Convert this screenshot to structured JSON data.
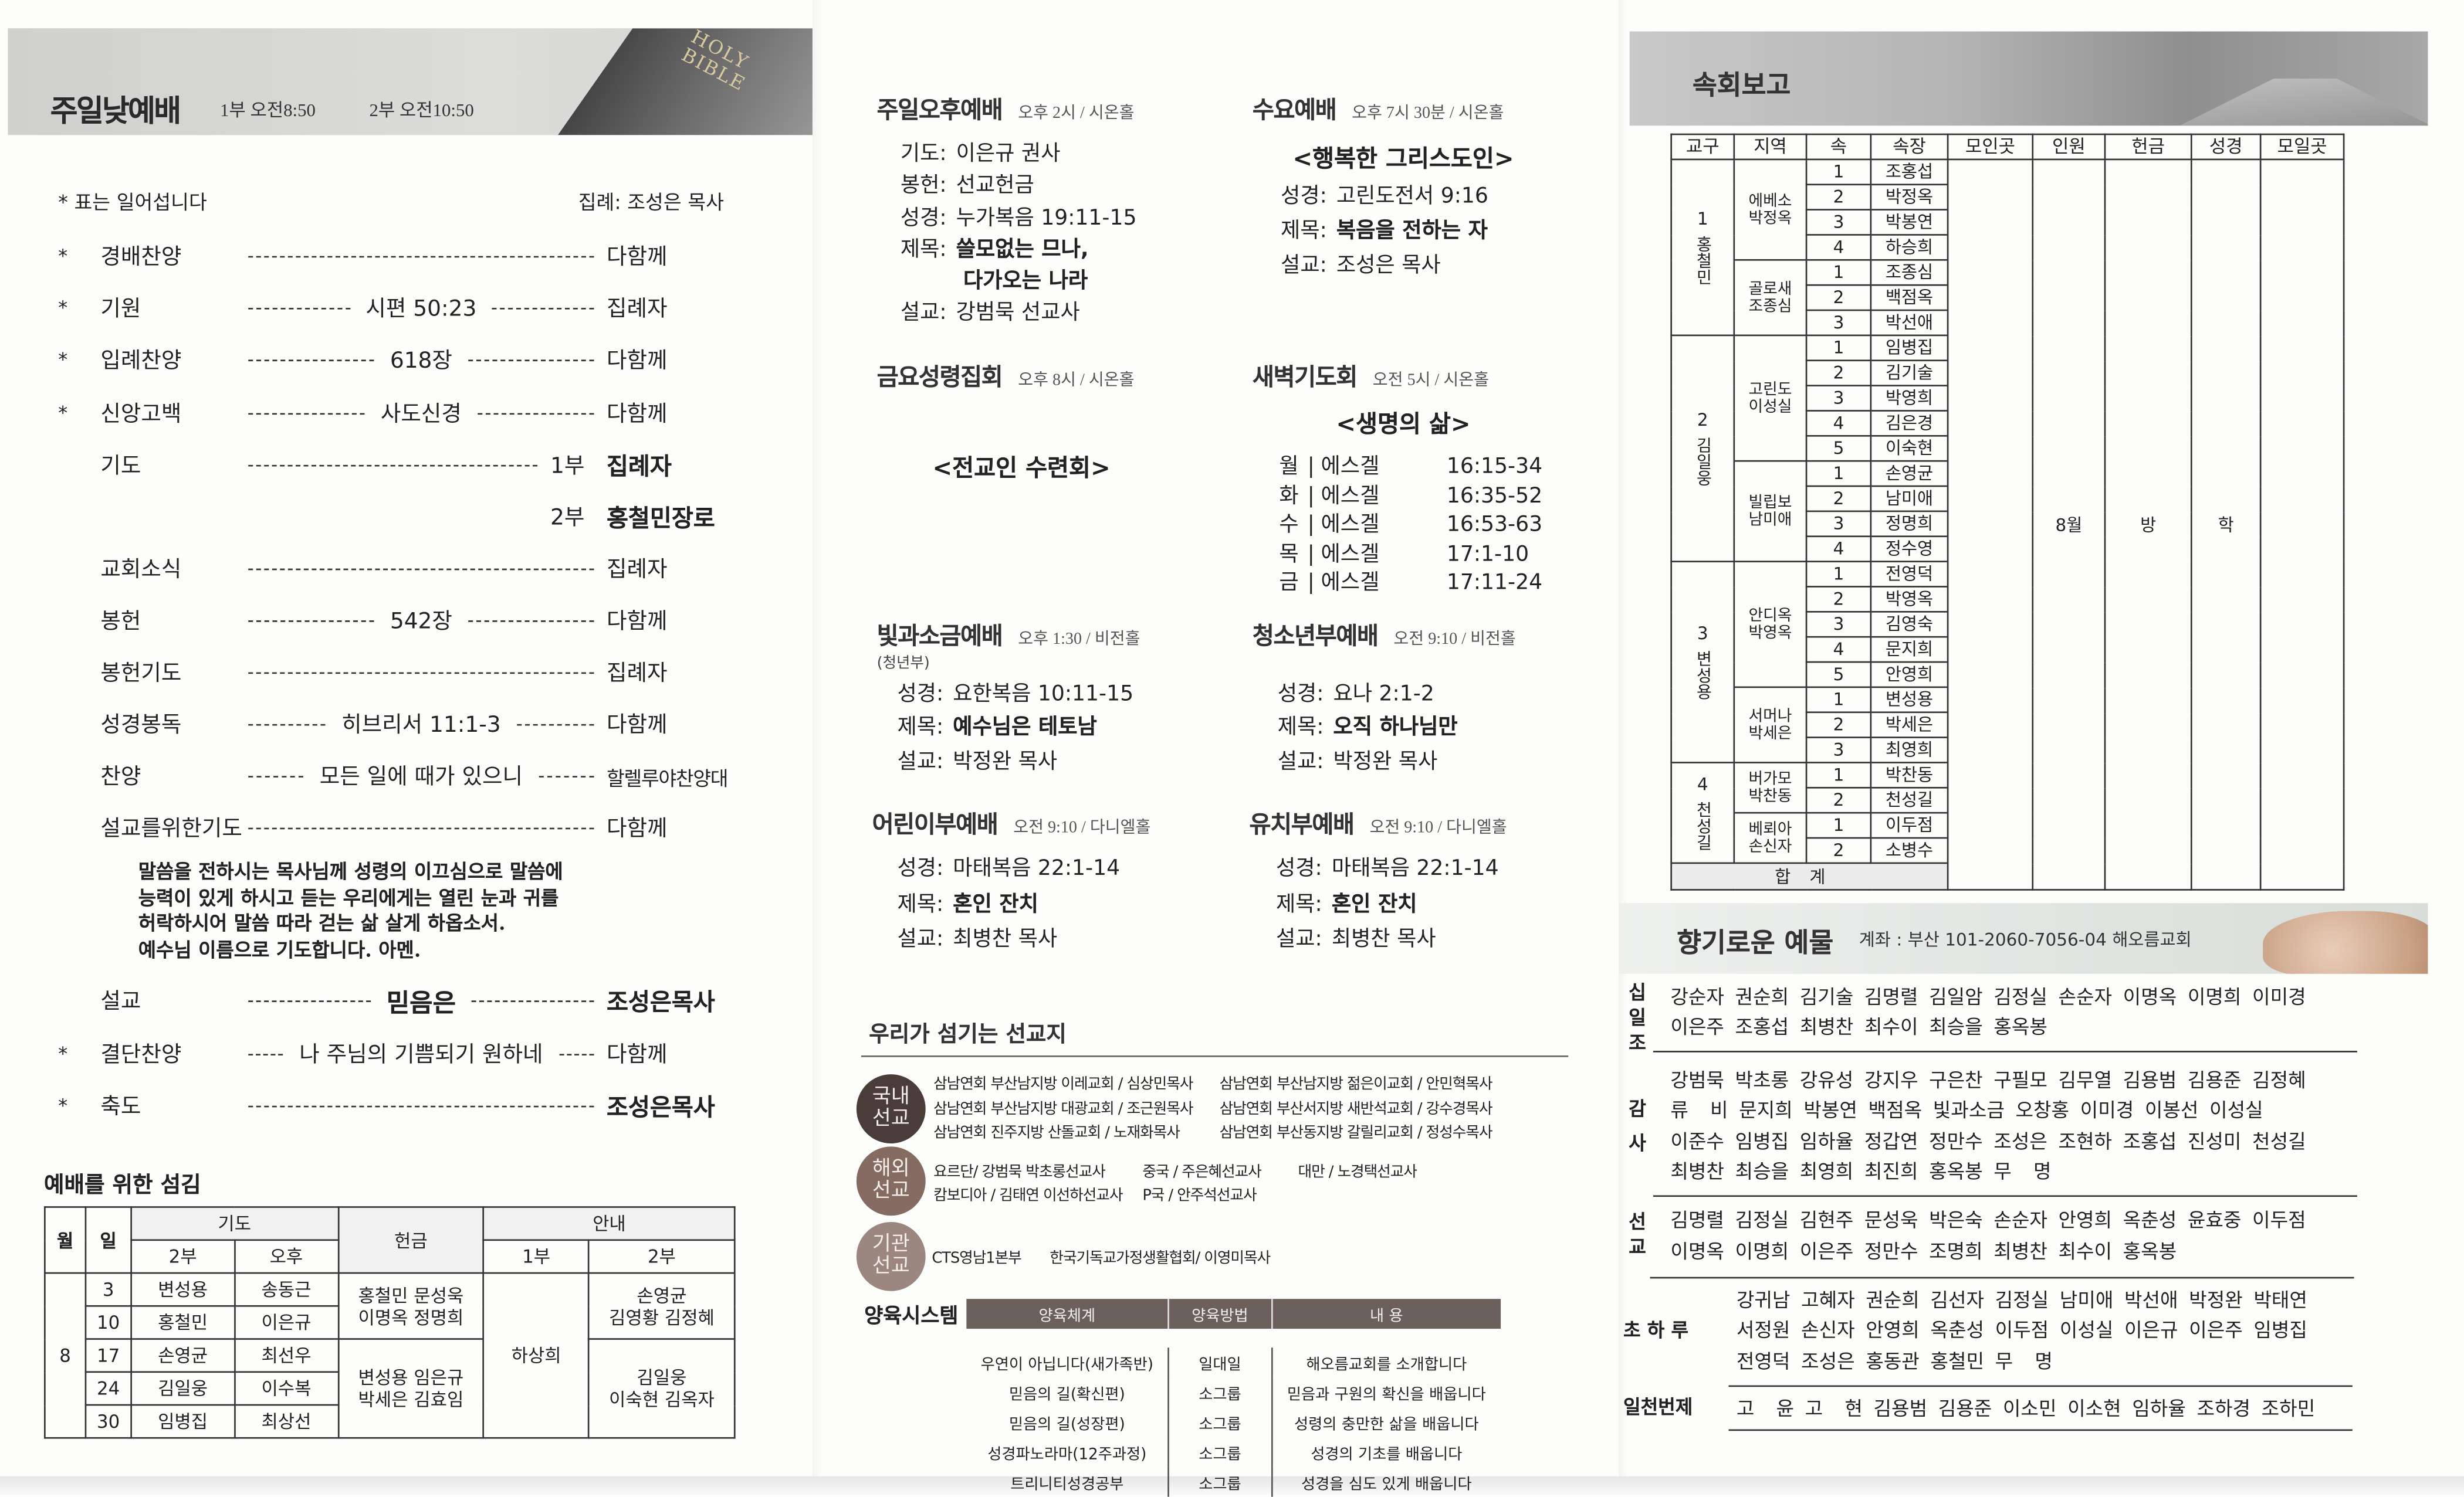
{
  "sunday_worship": {
    "title": "주일낮예배",
    "time1": "1부 오전8:50",
    "time2": "2부 오전10:50",
    "banner_logo": "HOLY BIBLE",
    "note": "* 표는 일어섭니다",
    "officiant": "집례: 조성은 목사",
    "order": [
      {
        "star": "*",
        "label": "경배찬양",
        "middle": "",
        "right": "다함께"
      },
      {
        "star": "*",
        "label": "기원",
        "middle": "시편 50:23",
        "right": "집례자"
      },
      {
        "star": "*",
        "label": "입례찬양",
        "middle": "618장",
        "right": "다함께"
      },
      {
        "star": "*",
        "label": "신앙고백",
        "middle": "사도신경",
        "right": "다함께"
      },
      {
        "star": "",
        "label": "기도",
        "middle": "",
        "prefix": "1부",
        "right": "집례자",
        "bold": true
      },
      {
        "star": "",
        "label": "",
        "middle": "",
        "prefix": "2부",
        "right": "홍철민장로",
        "bold": true,
        "noline": true
      },
      {
        "star": "",
        "label": "교회소식",
        "middle": "",
        "right": "집례자"
      },
      {
        "star": "",
        "label": "봉헌",
        "middle": "542장",
        "right": "다함께"
      },
      {
        "star": "",
        "label": "봉헌기도",
        "middle": "",
        "right": "집례자"
      },
      {
        "star": "",
        "label": "성경봉독",
        "middle": "히브리서 11:1-3",
        "right": "다함께"
      },
      {
        "star": "",
        "label": "찬양",
        "middle": "모든 일에 때가 있으니",
        "right": "할렐루야찬양대",
        "long": true
      },
      {
        "star": "",
        "label": "설교를위한기도",
        "middle": "",
        "right": "다함께"
      },
      {
        "star": "",
        "label": "설교",
        "middle": "믿음은",
        "middle_bold": true,
        "right": "조성은목사",
        "bold": true
      },
      {
        "star": "*",
        "label": "결단찬양",
        "middle": "나 주님의 기쁨되기 원하네",
        "right": "다함께"
      },
      {
        "star": "*",
        "label": "축도",
        "middle": "",
        "right": "조성은목사",
        "bold": true
      }
    ],
    "prayer": [
      "말씀을 전하시는 목사님께 성령의 이끄심으로 말씀에",
      "능력이 있게 하시고 듣는 우리에게는 열린 눈과 귀를",
      "허락하시어 말씀 따라 걷는 삶 살게 하옵소서.",
      "예수님 이름으로 기도합니다. 아멘."
    ]
  },
  "service_roster": {
    "title": "예배를 위한 섬김",
    "headers": {
      "month": "월",
      "day": "일",
      "prayer": "기도",
      "prayer_2": "2부",
      "prayer_pm": "오후",
      "offering": "헌금",
      "usher": "안내",
      "usher_1": "1부",
      "usher_2": "2부"
    },
    "month": "8",
    "rows": [
      {
        "day": "3",
        "p2": "변성용",
        "pm": "송동근"
      },
      {
        "day": "10",
        "p2": "홍철민",
        "pm": "이은규"
      },
      {
        "day": "17",
        "p2": "손영균",
        "pm": "최선우"
      },
      {
        "day": "24",
        "p2": "김일웅",
        "pm": "이수복"
      },
      {
        "day": "30",
        "p2": "임병집",
        "pm": "최상선"
      }
    ],
    "offering_groups": [
      [
        "홍철민 문성욱",
        "이명옥 정명희"
      ],
      [
        "변성용 임은규",
        "박세은 김효임"
      ]
    ],
    "usher_1": "하상희",
    "usher_2_groups": [
      [
        "손영균",
        "김영황 김정혜"
      ],
      [
        "김일웅",
        "이숙현 김옥자"
      ]
    ]
  },
  "services": {
    "afternoon": {
      "title": "주일오후예배",
      "meta": "오후 2시 / 시온홀",
      "lines": [
        {
          "k": "기도:",
          "v": "이은규 권사"
        },
        {
          "k": "봉헌:",
          "v": "선교헌금"
        },
        {
          "k": "성경:",
          "v": "누가복음 19:11-15"
        },
        {
          "k": "제목:",
          "v": "쓸모없는 므나,",
          "v2": "다가오는 나라",
          "bold": true
        },
        {
          "k": "설교:",
          "v": "강범묵 선교사"
        }
      ]
    },
    "wednesday": {
      "title": "수요예배",
      "meta": "오후 7시 30분 / 시온홀",
      "theme": "<행복한 그리스도인>",
      "lines": [
        {
          "k": "성경:",
          "v": "고린도전서 9:16"
        },
        {
          "k": "제목:",
          "v": "복음을 전하는 자",
          "bold": true
        },
        {
          "k": "설교:",
          "v": "조성은 목사"
        }
      ]
    },
    "friday": {
      "title": "금요성령집회",
      "meta": "오후 8시 / 시온홀",
      "theme": "<전교인 수련회>",
      "lines": []
    },
    "dawn": {
      "title": "새벽기도회",
      "meta": "오전 5시 / 시온홀",
      "theme": "<생명의 삶>",
      "readings": [
        {
          "day": "월",
          "book": "에스겔",
          "ref": "16:15-34"
        },
        {
          "day": "화",
          "book": "에스겔",
          "ref": "16:35-52"
        },
        {
          "day": "수",
          "book": "에스겔",
          "ref": "16:53-63"
        },
        {
          "day": "목",
          "book": "에스겔",
          "ref": "17:1-10"
        },
        {
          "day": "금",
          "book": "에스겔",
          "ref": "17:11-24"
        }
      ]
    },
    "light_salt": {
      "title": "빛과소금예배",
      "meta": "오후 1:30 / 비전홀",
      "sub": "(청년부)",
      "lines": [
        {
          "k": "성경:",
          "v": "요한복음 10:11-15"
        },
        {
          "k": "제목:",
          "v": "예수님은 테토남",
          "bold": true
        },
        {
          "k": "설교:",
          "v": "박정완 목사"
        }
      ]
    },
    "youth": {
      "title": "청소년부예배",
      "meta": "오전 9:10 / 비전홀",
      "lines": [
        {
          "k": "성경:",
          "v": "요나 2:1-2"
        },
        {
          "k": "제목:",
          "v": "오직 하나님만",
          "bold": true
        },
        {
          "k": "설교:",
          "v": "박정완 목사"
        }
      ]
    },
    "children": {
      "title": "어린이부예배",
      "meta": "오전 9:10 / 다니엘홀",
      "lines": [
        {
          "k": "성경:",
          "v": "마태복음 22:1-14"
        },
        {
          "k": "제목:",
          "v": "혼인 잔치",
          "bold": true
        },
        {
          "k": "설교:",
          "v": "최병찬 목사"
        }
      ]
    },
    "kinder": {
      "title": "유치부예배",
      "meta": "오전 9:10 / 다니엘홀",
      "lines": [
        {
          "k": "성경:",
          "v": "마태복음 22:1-14"
        },
        {
          "k": "제목:",
          "v": "혼인 잔치",
          "bold": true
        },
        {
          "k": "설교:",
          "v": "최병찬 목사"
        }
      ]
    }
  },
  "missions": {
    "title": "우리가 섬기는 선교지",
    "groups": [
      {
        "badge": [
          "국내",
          "선교"
        ],
        "color": "#4a3c39",
        "lines": [
          [
            "삼남연회 부산남지방 이레교회 / 심상민목사",
            "삼남연회 부산남지방 젊은이교회 / 안민혁목사"
          ],
          [
            "삼남연회 부산남지방 대광교회 / 조근원목사",
            "삼남연회 부산서지방 새반석교회 / 강수경목사"
          ],
          [
            "삼남연회 진주지방 산돌교회 / 노재화목사",
            "삼남연회 부산동지방 갈릴리교회 / 정성수목사"
          ]
        ]
      },
      {
        "badge": [
          "해외",
          "선교"
        ],
        "color": "#866b63",
        "lines": [
          [
            "요르단/ 강범묵 박초롱선교사",
            "중국 / 주은혜선교사",
            "대만 / 노경택선교사"
          ],
          [
            "캄보디아 / 김태연 이선하선교사",
            "P국 / 안주석선교사"
          ]
        ]
      },
      {
        "badge": [
          "기관",
          "선교"
        ],
        "color": "#9c8780",
        "lines": [
          [
            "CTS영남1본부",
            "한국기독교가정생활협회/ 이영미목사"
          ]
        ]
      }
    ]
  },
  "education": {
    "title": "양육시스템",
    "headers": [
      "양육체계",
      "양육방법",
      "내 용"
    ],
    "rows": [
      [
        "우연이 아닙니다(새가족반)",
        "일대일",
        "해오름교회를 소개합니다"
      ],
      [
        "믿음의 길(확신편)",
        "소그룹",
        "믿음과 구원의 확신을 배웁니다"
      ],
      [
        "믿음의 길(성장편)",
        "소그룹",
        "성령의 충만한 삶을 배웁니다"
      ],
      [
        "성경파노라마(12주과정)",
        "소그룹",
        "성경의 기초를 배웁니다"
      ],
      [
        "트리니티성경공부",
        "소그룹",
        "성경을 심도 있게 배웁니다"
      ]
    ]
  },
  "cell_report": {
    "title": "속회보고",
    "headers": [
      "교구",
      "지역",
      "속",
      "속장",
      "모인곳",
      "인원",
      "헌금",
      "성경",
      "모일곳"
    ],
    "merged": {
      "place": "",
      "count": "8월",
      "offering": "방",
      "bible": "학",
      "next_place": ""
    },
    "total_label": "합계",
    "districts": [
      {
        "num": "1",
        "leader": "홍철민",
        "regions": [
          {
            "name": [
              "에베소",
              "박정옥"
            ],
            "leaders": [
              "조홍섭",
              "박정옥",
              "박봉연",
              "하승희"
            ]
          },
          {
            "name": [
              "골로새",
              "조종심"
            ],
            "leaders": [
              "조종심",
              "백점옥",
              "박선애"
            ]
          }
        ]
      },
      {
        "num": "2",
        "leader": "김일웅",
        "regions": [
          {
            "name": [
              "고린도",
              "이성실"
            ],
            "leaders": [
              "임병집",
              "김기술",
              "박영희",
              "김은경",
              "이숙현"
            ]
          },
          {
            "name": [
              "빌립보",
              "남미애"
            ],
            "leaders": [
              "손영균",
              "남미애",
              "정명희",
              "정수영"
            ]
          }
        ]
      },
      {
        "num": "3",
        "leader": "변성용",
        "regions": [
          {
            "name": [
              "안디옥",
              "박영옥"
            ],
            "leaders": [
              "전영덕",
              "박영옥",
              "김영숙",
              "문지희",
              "안영희"
            ]
          },
          {
            "name": [
              "서머나",
              "박세은"
            ],
            "leaders": [
              "변성용",
              "박세은",
              "최영희"
            ]
          }
        ]
      },
      {
        "num": "4",
        "leader": "천성길",
        "regions": [
          {
            "name": [
              "버가모",
              "박찬동"
            ],
            "leaders": [
              "박찬동",
              "천성길"
            ]
          },
          {
            "name": [
              "베뢰아",
              "손신자"
            ],
            "leaders": [
              "이두점",
              "소병수"
            ]
          }
        ]
      }
    ]
  },
  "offerings": {
    "title": "향기로운 예물",
    "account": "계좌 : 부산 101-2060-7056-04 해오름교회",
    "categories": [
      {
        "label": "십일조",
        "lines": [
          "강순자 권순희 김기술 김명렬 김일암 김정실 손순자 이명옥 이명희 이미경",
          "이은주 조홍섭 최병찬 최수이 최승을 홍옥봉"
        ]
      },
      {
        "label": "감사",
        "lines": [
          "강범묵 박초롱 강유성 강지우 구은찬 구필모 김무열 김용범 김용준 김정혜",
          "류  비 문지희 박봉연 백점옥 빛과소금 오창홍 이미경 이봉선 이성실",
          "이준수 임병집 임하율 정갑연 정만수 조성은 조현하 조홍섭 진성미 천성길",
          "최병찬 최승을 최영희 최진희 홍옥봉 무  명"
        ]
      },
      {
        "label": "선교",
        "lines": [
          "김명렬 김정실 김현주 문성욱 박은숙 손순자 안영희 옥춘성 윤효중 이두점",
          "이명옥 이명희 이은주 정만수 조명희 최병찬 최수이 홍옥봉"
        ]
      },
      {
        "label": "초 하 루",
        "lines": [
          "강귀남 고혜자 권순희 김선자 김정실 남미애 박선애 박정완 박태연",
          "서정원 손신자 안영희 옥춘성 이두점 이성실 이은규 이은주 임병집",
          "전영덕 조성은 홍동관 홍철민 무  명"
        ]
      },
      {
        "label": "일천번제",
        "lines": [
          "고  윤 고  현 김용범 김용준 이소민 이소현 임하율 조하경 조하민"
        ]
      }
    ]
  }
}
